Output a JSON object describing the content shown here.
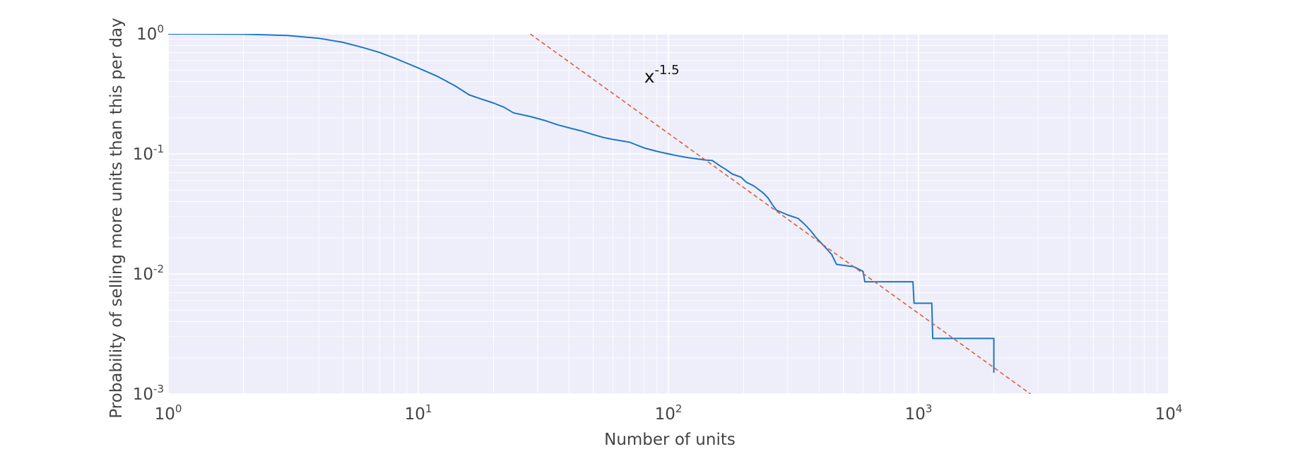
{
  "chart_data": {
    "type": "line",
    "xscale": "log",
    "yscale": "log",
    "xlim": [
      1,
      10000
    ],
    "ylim": [
      0.001,
      1
    ],
    "xlabel": "Number of units",
    "ylabel": "Probability of selling more units than this per day",
    "x_ticks": [
      {
        "value": 1,
        "base": "10",
        "exp": "0"
      },
      {
        "value": 10,
        "base": "10",
        "exp": "1"
      },
      {
        "value": 100,
        "base": "10",
        "exp": "2"
      },
      {
        "value": 1000,
        "base": "10",
        "exp": "3"
      },
      {
        "value": 10000,
        "base": "10",
        "exp": "4"
      }
    ],
    "y_ticks": [
      {
        "value": 1,
        "base": "10",
        "exp": "0"
      },
      {
        "value": 0.1,
        "base": "10",
        "exp": "-1"
      },
      {
        "value": 0.01,
        "base": "10",
        "exp": "-2"
      },
      {
        "value": 0.001,
        "base": "10",
        "exp": "-3"
      }
    ],
    "grid": true,
    "background_color": "#eeeefa",
    "grid_color": "#ffffff",
    "series": [
      {
        "color": "#1f77c4",
        "style": "solid",
        "points": [
          [
            1,
            1.0
          ],
          [
            2,
            0.995
          ],
          [
            3,
            0.97
          ],
          [
            4,
            0.92
          ],
          [
            5,
            0.85
          ],
          [
            6,
            0.77
          ],
          [
            7,
            0.7
          ],
          [
            8,
            0.63
          ],
          [
            9,
            0.57
          ],
          [
            10,
            0.52
          ],
          [
            12,
            0.44
          ],
          [
            14,
            0.37
          ],
          [
            16,
            0.31
          ],
          [
            18,
            0.285
          ],
          [
            20,
            0.265
          ],
          [
            22,
            0.245
          ],
          [
            24,
            0.22
          ],
          [
            28,
            0.205
          ],
          [
            32,
            0.19
          ],
          [
            36,
            0.175
          ],
          [
            40,
            0.165
          ],
          [
            45,
            0.155
          ],
          [
            50,
            0.145
          ],
          [
            55,
            0.137
          ],
          [
            60,
            0.132
          ],
          [
            70,
            0.125
          ],
          [
            80,
            0.112
          ],
          [
            90,
            0.105
          ],
          [
            100,
            0.1
          ],
          [
            110,
            0.096
          ],
          [
            120,
            0.093
          ],
          [
            130,
            0.091
          ],
          [
            140,
            0.089
          ],
          [
            150,
            0.088
          ],
          [
            160,
            0.08
          ],
          [
            170,
            0.074
          ],
          [
            180,
            0.068
          ],
          [
            195,
            0.064
          ],
          [
            205,
            0.058
          ],
          [
            220,
            0.054
          ],
          [
            240,
            0.047
          ],
          [
            250,
            0.043
          ],
          [
            260,
            0.038
          ],
          [
            270,
            0.034
          ],
          [
            300,
            0.031
          ],
          [
            330,
            0.029
          ],
          [
            350,
            0.026
          ],
          [
            370,
            0.023
          ],
          [
            390,
            0.02
          ],
          [
            420,
            0.017
          ],
          [
            450,
            0.0145
          ],
          [
            470,
            0.012
          ],
          [
            550,
            0.0115
          ],
          [
            600,
            0.0105
          ],
          [
            610,
            0.0086
          ],
          [
            950,
            0.0086
          ],
          [
            960,
            0.0057
          ],
          [
            1130,
            0.0057
          ],
          [
            1140,
            0.0029
          ],
          [
            2000,
            0.0029
          ],
          [
            2000,
            0.0015
          ]
        ]
      },
      {
        "color": "#d9603b",
        "style": "dashed",
        "points": [
          [
            28,
            1.0
          ],
          [
            2900,
            0.00095
          ]
        ]
      }
    ],
    "annotations": [
      {
        "base": "x",
        "exp": "-1.5",
        "x": 80,
        "y": 0.45
      }
    ]
  }
}
